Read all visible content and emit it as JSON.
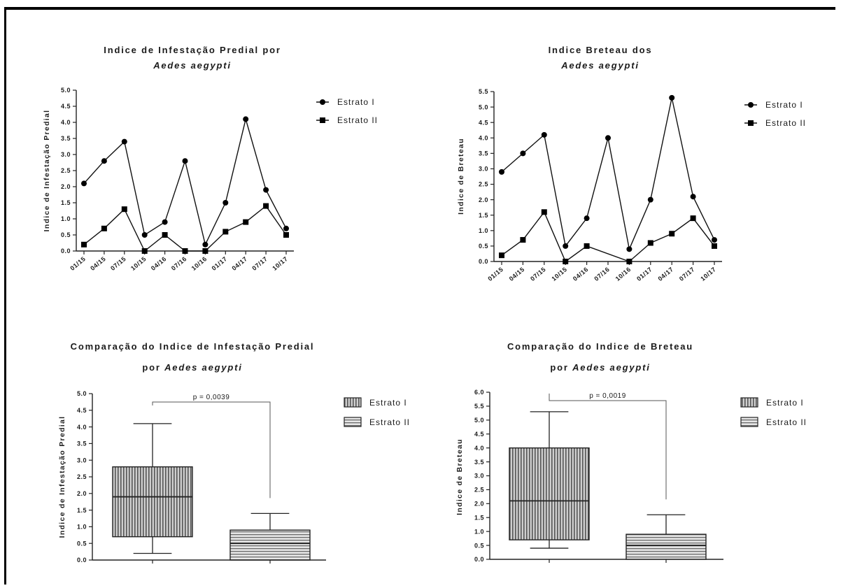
{
  "chart_data": [
    {
      "type": "line",
      "title_line1": "Indice de Infestação Predial por",
      "title_line2": "Aedes aegypti",
      "ylabel": "Indice de Infestação Predial",
      "xlabel": "",
      "categories": [
        "01/15",
        "04/15",
        "07/15",
        "10/15",
        "04/16",
        "07/16",
        "10/16",
        "01/17",
        "04/17",
        "07/17",
        "10/17"
      ],
      "ylim": [
        0,
        5.0
      ],
      "yticks": [
        "0.0",
        "0.5",
        "1.0",
        "1.5",
        "2.0",
        "2.5",
        "3.0",
        "3.5",
        "4.0",
        "4.5",
        "5.0"
      ],
      "series": [
        {
          "name": "Estrato I",
          "marker": "circle",
          "values": [
            2.1,
            2.8,
            3.4,
            0.5,
            0.9,
            2.8,
            0.2,
            1.5,
            4.1,
            1.9,
            0.7
          ]
        },
        {
          "name": "Estrato II",
          "marker": "square",
          "values": [
            0.2,
            0.7,
            1.3,
            0.0,
            0.5,
            0.0,
            0.0,
            0.6,
            0.9,
            1.4,
            0.5
          ]
        }
      ],
      "legend": "right"
    },
    {
      "type": "line",
      "title_line1": "Indice Breteau dos",
      "title_line2": "Aedes aegypti",
      "ylabel": "Indice de Breteau",
      "xlabel": "",
      "categories": [
        "01/15",
        "04/15",
        "07/15",
        "10/15",
        "04/16",
        "07/16",
        "10/16",
        "01/17",
        "04/17",
        "07/17",
        "10/17"
      ],
      "ylim": [
        0,
        5.5
      ],
      "yticks": [
        "0.0",
        "0.5",
        "1.0",
        "1.5",
        "2.0",
        "2.5",
        "3.0",
        "3.5",
        "4.0",
        "4.5",
        "5.0",
        "5.5"
      ],
      "series": [
        {
          "name": "Estrato I",
          "marker": "circle",
          "values": [
            2.9,
            3.5,
            4.1,
            0.5,
            1.4,
            4.0,
            0.4,
            2.0,
            5.3,
            2.1,
            0.7
          ]
        },
        {
          "name": "Estrato II",
          "marker": "square",
          "values": [
            0.2,
            0.7,
            1.6,
            0.0,
            0.5,
            null,
            0.0,
            0.6,
            0.9,
            1.4,
            0.5
          ]
        }
      ],
      "legend": "right"
    },
    {
      "type": "box",
      "title_line1": "Comparação do Indice de Infestação Predial",
      "title_line2_prefix": "por ",
      "title_line2_italic": "Aedes aegypti",
      "ylabel": "Indice de Infestação Predial",
      "ylim": [
        0,
        5.0
      ],
      "yticks": [
        "0.0",
        "0.5",
        "1.0",
        "1.5",
        "2.0",
        "2.5",
        "3.0",
        "3.5",
        "4.0",
        "4.5",
        "5.0"
      ],
      "pvalue": "p = 0,0039",
      "boxes": [
        {
          "name": "Estrato I",
          "pattern": "vertical",
          "min": 0.2,
          "q1": 0.7,
          "median": 1.9,
          "q3": 2.8,
          "max": 4.1
        },
        {
          "name": "Estrato II",
          "pattern": "horizontal",
          "min": 0.0,
          "q1": 0.0,
          "median": 0.5,
          "q3": 0.9,
          "max": 1.4
        }
      ],
      "legend": "right"
    },
    {
      "type": "box",
      "title_line1": "Comparação do Indice de Breteau",
      "title_line2_prefix": "por ",
      "title_line2_italic": "Aedes aegypti",
      "ylabel": "Indice de Breteau",
      "ylim": [
        0,
        6.0
      ],
      "yticks": [
        "0.0",
        "0.5",
        "1.0",
        "1.5",
        "2.0",
        "2.5",
        "3.0",
        "3.5",
        "4.0",
        "4.5",
        "5.0",
        "5.5",
        "6.0"
      ],
      "pvalue": "p = 0,0019",
      "boxes": [
        {
          "name": "Estrato I",
          "pattern": "vertical",
          "min": 0.4,
          "q1": 0.7,
          "median": 2.1,
          "q3": 4.0,
          "max": 5.3
        },
        {
          "name": "Estrato II",
          "pattern": "horizontal",
          "min": 0.0,
          "q1": 0.0,
          "median": 0.5,
          "q3": 0.9,
          "max": 1.6
        }
      ],
      "legend": "right"
    }
  ]
}
